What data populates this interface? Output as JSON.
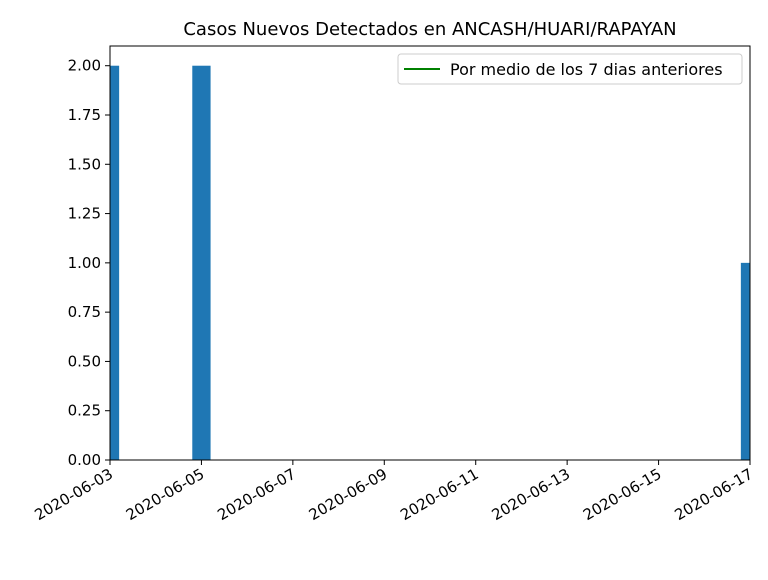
{
  "chart_data": {
    "type": "bar",
    "title": "Casos Nuevos Detectados en ANCASH/HUARI/RAPAYAN",
    "xlabel": "",
    "ylabel": "",
    "x_range": [
      "2020-06-03",
      "2020-06-17"
    ],
    "ylim": [
      0,
      2.1
    ],
    "x_ticks": [
      "2020-06-03",
      "2020-06-05",
      "2020-06-07",
      "2020-06-09",
      "2020-06-11",
      "2020-06-13",
      "2020-06-15",
      "2020-06-17"
    ],
    "y_ticks": [
      "0.00",
      "0.25",
      "0.50",
      "0.75",
      "1.00",
      "1.25",
      "1.50",
      "1.75",
      "2.00"
    ],
    "bars": [
      {
        "date": "2020-06-03",
        "value": 2
      },
      {
        "date": "2020-06-05",
        "value": 2
      },
      {
        "date": "2020-06-17",
        "value": 1
      }
    ],
    "legend": {
      "placement": "upper-right",
      "entries": [
        {
          "label": "Por medio de los 7 dias anteriores",
          "color": "#008000"
        }
      ]
    },
    "bar_color": "#1f77b4",
    "grid": false
  }
}
